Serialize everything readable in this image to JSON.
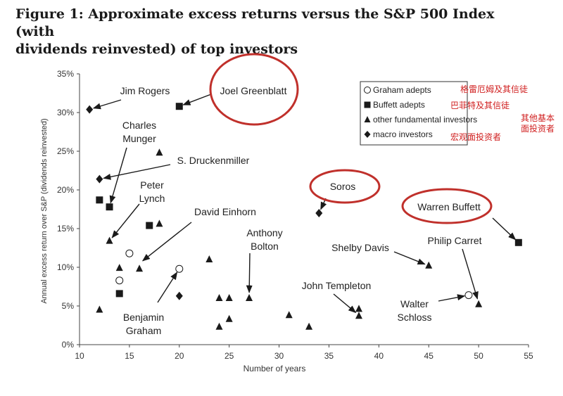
{
  "figure_title_line1": "Figure 1: Approximate excess returns versus the S&P 500 Index (with",
  "figure_title_line2": "dividends reinvested) of top investors",
  "chart_data": {
    "type": "scatter",
    "title": "Figure 1: Approximate excess returns versus the S&P 500 Index (with dividends reinvested) of top investors",
    "xlabel": "Number of years",
    "ylabel": "Annual excess return over S&P (dividends reinvested)",
    "xlim": [
      10,
      55
    ],
    "ylim": [
      0,
      35
    ],
    "x_ticks": [
      "10",
      "15",
      "20",
      "25",
      "30",
      "35",
      "40",
      "45",
      "50",
      "55"
    ],
    "y_ticks": [
      "0%",
      "5%",
      "10%",
      "15%",
      "20%",
      "25%",
      "30%",
      "35%"
    ],
    "grid": false,
    "legend_position": "top-right",
    "legend": [
      {
        "key": "graham",
        "label": "Graham adepts",
        "cn": "格雷厄姆及其信徒",
        "marker": "circle-open"
      },
      {
        "key": "buffett",
        "label": "Buffett adepts",
        "cn": "巴菲特及其信徒",
        "marker": "square"
      },
      {
        "key": "other",
        "label": "other fundamental investors",
        "cn_line1": "其他基本",
        "cn_line2": "面投资者",
        "marker": "triangle"
      },
      {
        "key": "macro",
        "label": "macro investors",
        "cn": "宏观面投资者",
        "marker": "diamond"
      }
    ],
    "series": [
      {
        "name": "Graham adepts",
        "marker": "circle-open",
        "points": [
          {
            "x": 15,
            "y": 11.8
          },
          {
            "x": 14,
            "y": 8.3
          },
          {
            "x": 20,
            "y": 9.8
          },
          {
            "x": 49,
            "y": 6.4
          }
        ]
      },
      {
        "name": "Buffett adepts",
        "marker": "square",
        "points": [
          {
            "x": 20,
            "y": 30.8
          },
          {
            "x": 12,
            "y": 18.7
          },
          {
            "x": 13,
            "y": 17.8
          },
          {
            "x": 17,
            "y": 15.4
          },
          {
            "x": 14,
            "y": 6.6
          },
          {
            "x": 54,
            "y": 13.2
          }
        ]
      },
      {
        "name": "other fundamental investors",
        "marker": "triangle",
        "points": [
          {
            "x": 18,
            "y": 24.8
          },
          {
            "x": 13,
            "y": 13.4
          },
          {
            "x": 18,
            "y": 15.6
          },
          {
            "x": 14,
            "y": 9.9
          },
          {
            "x": 16,
            "y": 9.8
          },
          {
            "x": 12,
            "y": 4.5
          },
          {
            "x": 23,
            "y": 11.0
          },
          {
            "x": 24,
            "y": 6.0
          },
          {
            "x": 25,
            "y": 6.0
          },
          {
            "x": 24,
            "y": 2.3
          },
          {
            "x": 25,
            "y": 3.3
          },
          {
            "x": 27,
            "y": 6.0
          },
          {
            "x": 31,
            "y": 3.8
          },
          {
            "x": 33,
            "y": 2.3
          },
          {
            "x": 38,
            "y": 4.6
          },
          {
            "x": 38,
            "y": 3.7
          },
          {
            "x": 45,
            "y": 10.2
          },
          {
            "x": 50,
            "y": 5.2
          }
        ]
      },
      {
        "name": "macro investors",
        "marker": "diamond",
        "points": [
          {
            "x": 11,
            "y": 30.4
          },
          {
            "x": 12,
            "y": 21.4
          },
          {
            "x": 20,
            "y": 6.3
          },
          {
            "x": 34,
            "y": 17.0
          }
        ]
      }
    ],
    "annotations": [
      {
        "lines": [
          "Jim Rogers"
        ],
        "target": {
          "x": 11,
          "y": 30.4
        },
        "circled": false
      },
      {
        "lines": [
          "Joel Greenblatt"
        ],
        "target": {
          "x": 20,
          "y": 30.8
        },
        "circled": true
      },
      {
        "lines": [
          "Charles",
          "Munger"
        ],
        "target": {
          "x": 13,
          "y": 17.8
        },
        "circled": false
      },
      {
        "lines": [
          "S. Druckenmiller"
        ],
        "target": {
          "x": 12,
          "y": 21.4
        },
        "circled": false
      },
      {
        "lines": [
          "Peter",
          "Lynch"
        ],
        "target": {
          "x": 13,
          "y": 13.4
        },
        "circled": false
      },
      {
        "lines": [
          "David Einhorn"
        ],
        "target": {
          "x": 16,
          "y": 10.5
        },
        "circled": false
      },
      {
        "lines": [
          "Anthony",
          "Bolton"
        ],
        "target": {
          "x": 27,
          "y": 6.2
        },
        "circled": false
      },
      {
        "lines": [
          "Soros"
        ],
        "target": {
          "x": 34,
          "y": 17.0
        },
        "circled": true
      },
      {
        "lines": [
          "Warren Buffett"
        ],
        "target": {
          "x": 54,
          "y": 13.2
        },
        "circled": true
      },
      {
        "lines": [
          "Philip Carret"
        ],
        "target": {
          "x": 50,
          "y": 5.4
        },
        "circled": false
      },
      {
        "lines": [
          "Shelby Davis"
        ],
        "target": {
          "x": 45,
          "y": 10.2
        },
        "circled": false
      },
      {
        "lines": [
          "John Templeton"
        ],
        "target": {
          "x": 38,
          "y": 3.8
        },
        "circled": false
      },
      {
        "lines": [
          "Walter",
          "Schloss"
        ],
        "target": {
          "x": 49,
          "y": 6.4
        },
        "circled": false
      },
      {
        "lines": [
          "Benjamin",
          "Graham"
        ],
        "target": {
          "x": 20,
          "y": 9.8
        },
        "circled": false
      }
    ],
    "highlight_color": "#c0302b",
    "legend_cn_color": "#d02020"
  }
}
